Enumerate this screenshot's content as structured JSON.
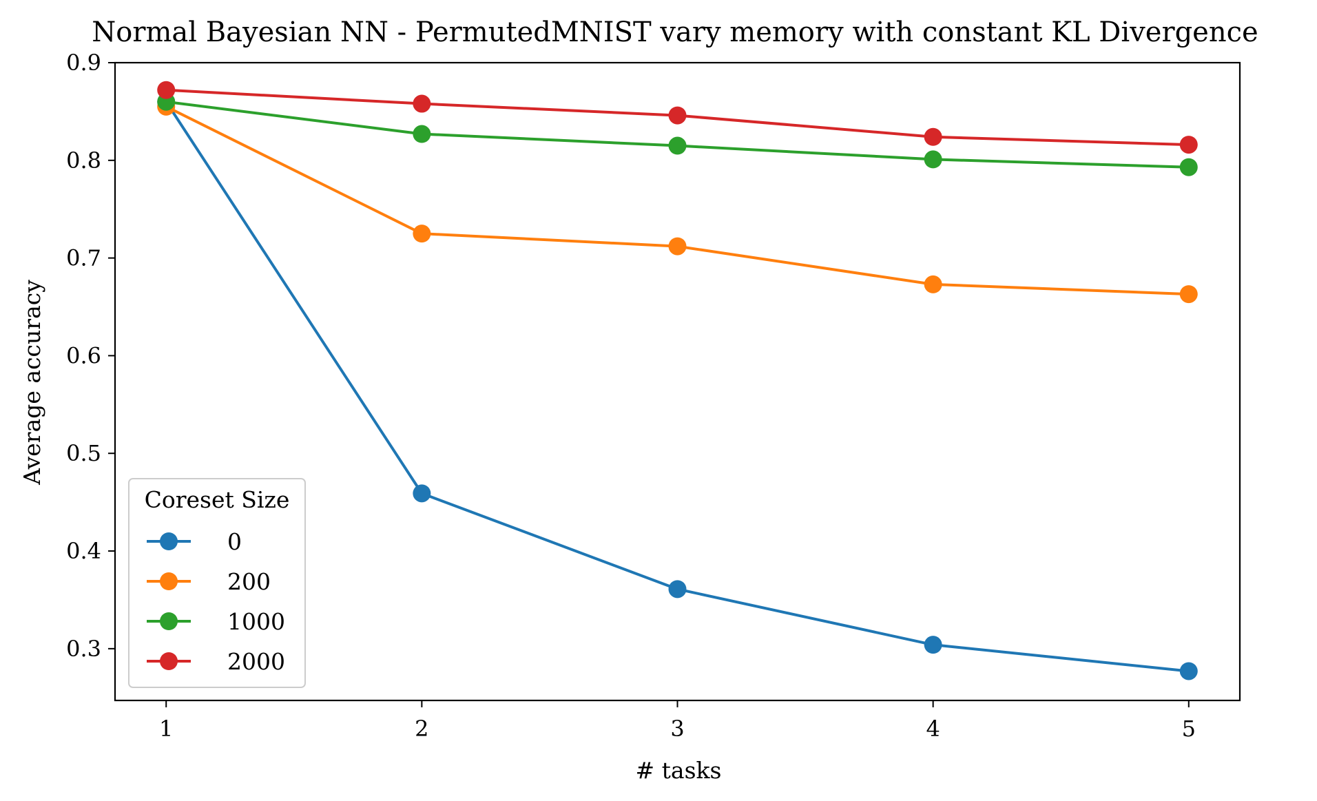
{
  "chart_data": {
    "type": "line",
    "title": "Normal Bayesian NN - PermutedMNIST vary memory with constant KL Divergence",
    "xlabel": "# tasks",
    "ylabel": "Average accuracy",
    "x": [
      1,
      2,
      3,
      4,
      5
    ],
    "xlim": [
      0.8,
      5.2
    ],
    "ylim": [
      0.247,
      0.9
    ],
    "xticks": [
      "1",
      "2",
      "3",
      "4",
      "5"
    ],
    "yticks": [
      "0.3",
      "0.4",
      "0.5",
      "0.6",
      "0.7",
      "0.8",
      "0.9"
    ],
    "grid": false,
    "legend": {
      "title": "Coreset Size",
      "placement": "lower-left"
    },
    "series": [
      {
        "name": "0",
        "color": "#1f77b4",
        "values": [
          0.86,
          0.459,
          0.361,
          0.304,
          0.277
        ]
      },
      {
        "name": "200",
        "color": "#ff7f0e",
        "values": [
          0.855,
          0.725,
          0.712,
          0.673,
          0.663
        ]
      },
      {
        "name": "1000",
        "color": "#2ca02c",
        "values": [
          0.86,
          0.827,
          0.815,
          0.801,
          0.793
        ]
      },
      {
        "name": "2000",
        "color": "#d62728",
        "values": [
          0.872,
          0.858,
          0.846,
          0.824,
          0.816
        ]
      }
    ]
  }
}
